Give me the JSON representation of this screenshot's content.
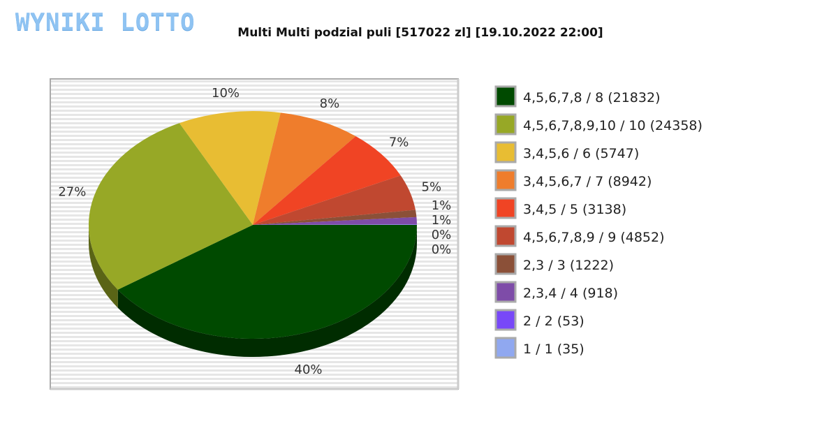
{
  "logo_text": "WYNIKI LOTTO",
  "chart_data": {
    "type": "pie",
    "title": "Multi Multi podzial puli [517022 zl] [19.10.2022 22:00]",
    "legend_position": "right",
    "slices": [
      {
        "label": "4,5,6,7,8 / 8 (21832)",
        "value": 40,
        "pct_label": "40%",
        "color": "#004a00"
      },
      {
        "label": "4,5,6,7,8,9,10 / 10 (24358)",
        "value": 27,
        "pct_label": "27%",
        "color": "#97a826"
      },
      {
        "label": "3,4,5,6 / 6 (5747)",
        "value": 10,
        "pct_label": "10%",
        "color": "#e8bd33"
      },
      {
        "label": "3,4,5,6,7 / 7 (8942)",
        "value": 8,
        "pct_label": "8%",
        "color": "#ef7d2c"
      },
      {
        "label": "3,4,5 / 5 (3138)",
        "value": 7,
        "pct_label": "7%",
        "color": "#f04424"
      },
      {
        "label": "4,5,6,7,8,9 / 9 (4852)",
        "value": 5,
        "pct_label": "5%",
        "color": "#c04830"
      },
      {
        "label": "2,3 / 3 (1222)",
        "value": 1,
        "pct_label": "1%",
        "color": "#8b5038"
      },
      {
        "label": "2,3,4 / 4 (918)",
        "value": 1,
        "pct_label": "1%",
        "color": "#7e4ca8"
      },
      {
        "label": "2 / 2 (53)",
        "value": 0.05,
        "pct_label": "0%",
        "color": "#7848f8"
      },
      {
        "label": "1 / 1 (35)",
        "value": 0.03,
        "pct_label": "0%",
        "color": "#90a8f0"
      }
    ]
  }
}
